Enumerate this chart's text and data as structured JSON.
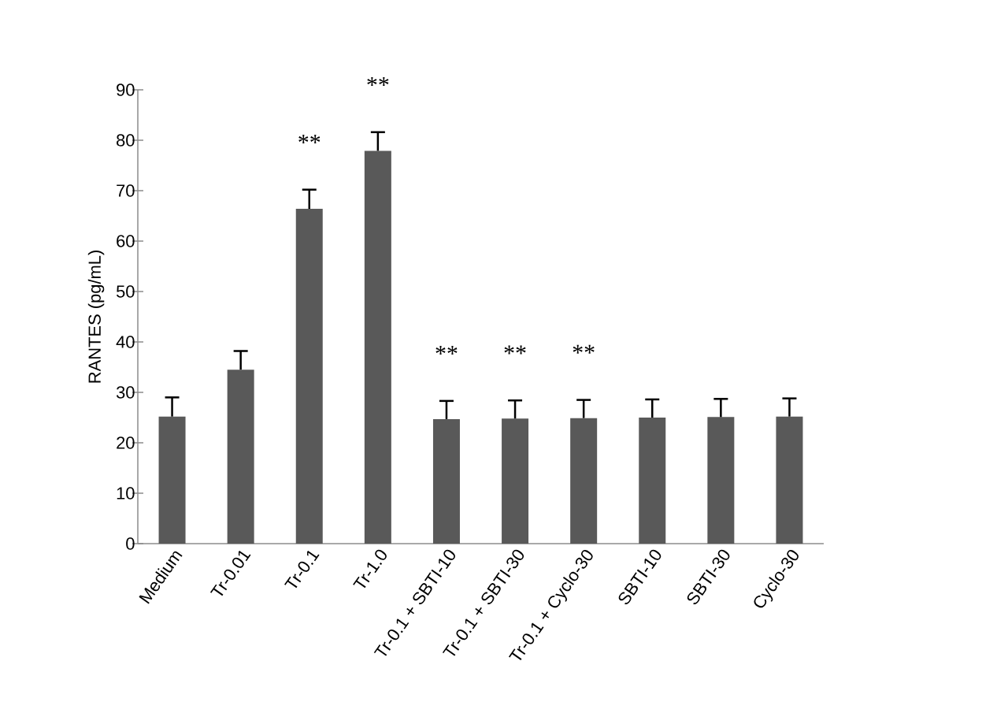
{
  "chart_data": {
    "type": "bar",
    "ylabel": "RANTES (pg/mL)",
    "categories": [
      "Medium",
      "Tr-0.01",
      "Tr-0.1",
      "Tr-1.0",
      "Tr-0.1 + SBTI-10",
      "Tr-0.1 + SBTI-30",
      "Tr-0.1 + Cyclo-30",
      "SBTI-10",
      "SBTI-30",
      "Cyclo-30"
    ],
    "values": [
      25.2,
      34.5,
      66.4,
      77.9,
      24.7,
      24.8,
      24.9,
      25.0,
      25.1,
      25.2
    ],
    "errors": [
      3.8,
      3.7,
      3.8,
      3.7,
      3.6,
      3.6,
      3.6,
      3.6,
      3.6,
      3.6
    ],
    "color": "#595959",
    "ylim": [
      0,
      90
    ],
    "yticks": [
      0,
      10,
      20,
      30,
      40,
      50,
      60,
      70,
      80,
      90
    ],
    "annotations": [
      {
        "text": "**",
        "x": "Tr-0.1",
        "y": 66.4
      },
      {
        "text": "**",
        "x": "Tr-1.0",
        "y": 77.9
      },
      {
        "text": "**",
        "x": "Tr-0.1 + SBTI-10",
        "y": 24.7
      },
      {
        "text": "**",
        "x": "Tr-0.1 + SBTI-30",
        "y": 24.8
      },
      {
        "text": "**",
        "x": "Tr-0.1 + Cyclo-30",
        "y": 24.9
      }
    ]
  }
}
